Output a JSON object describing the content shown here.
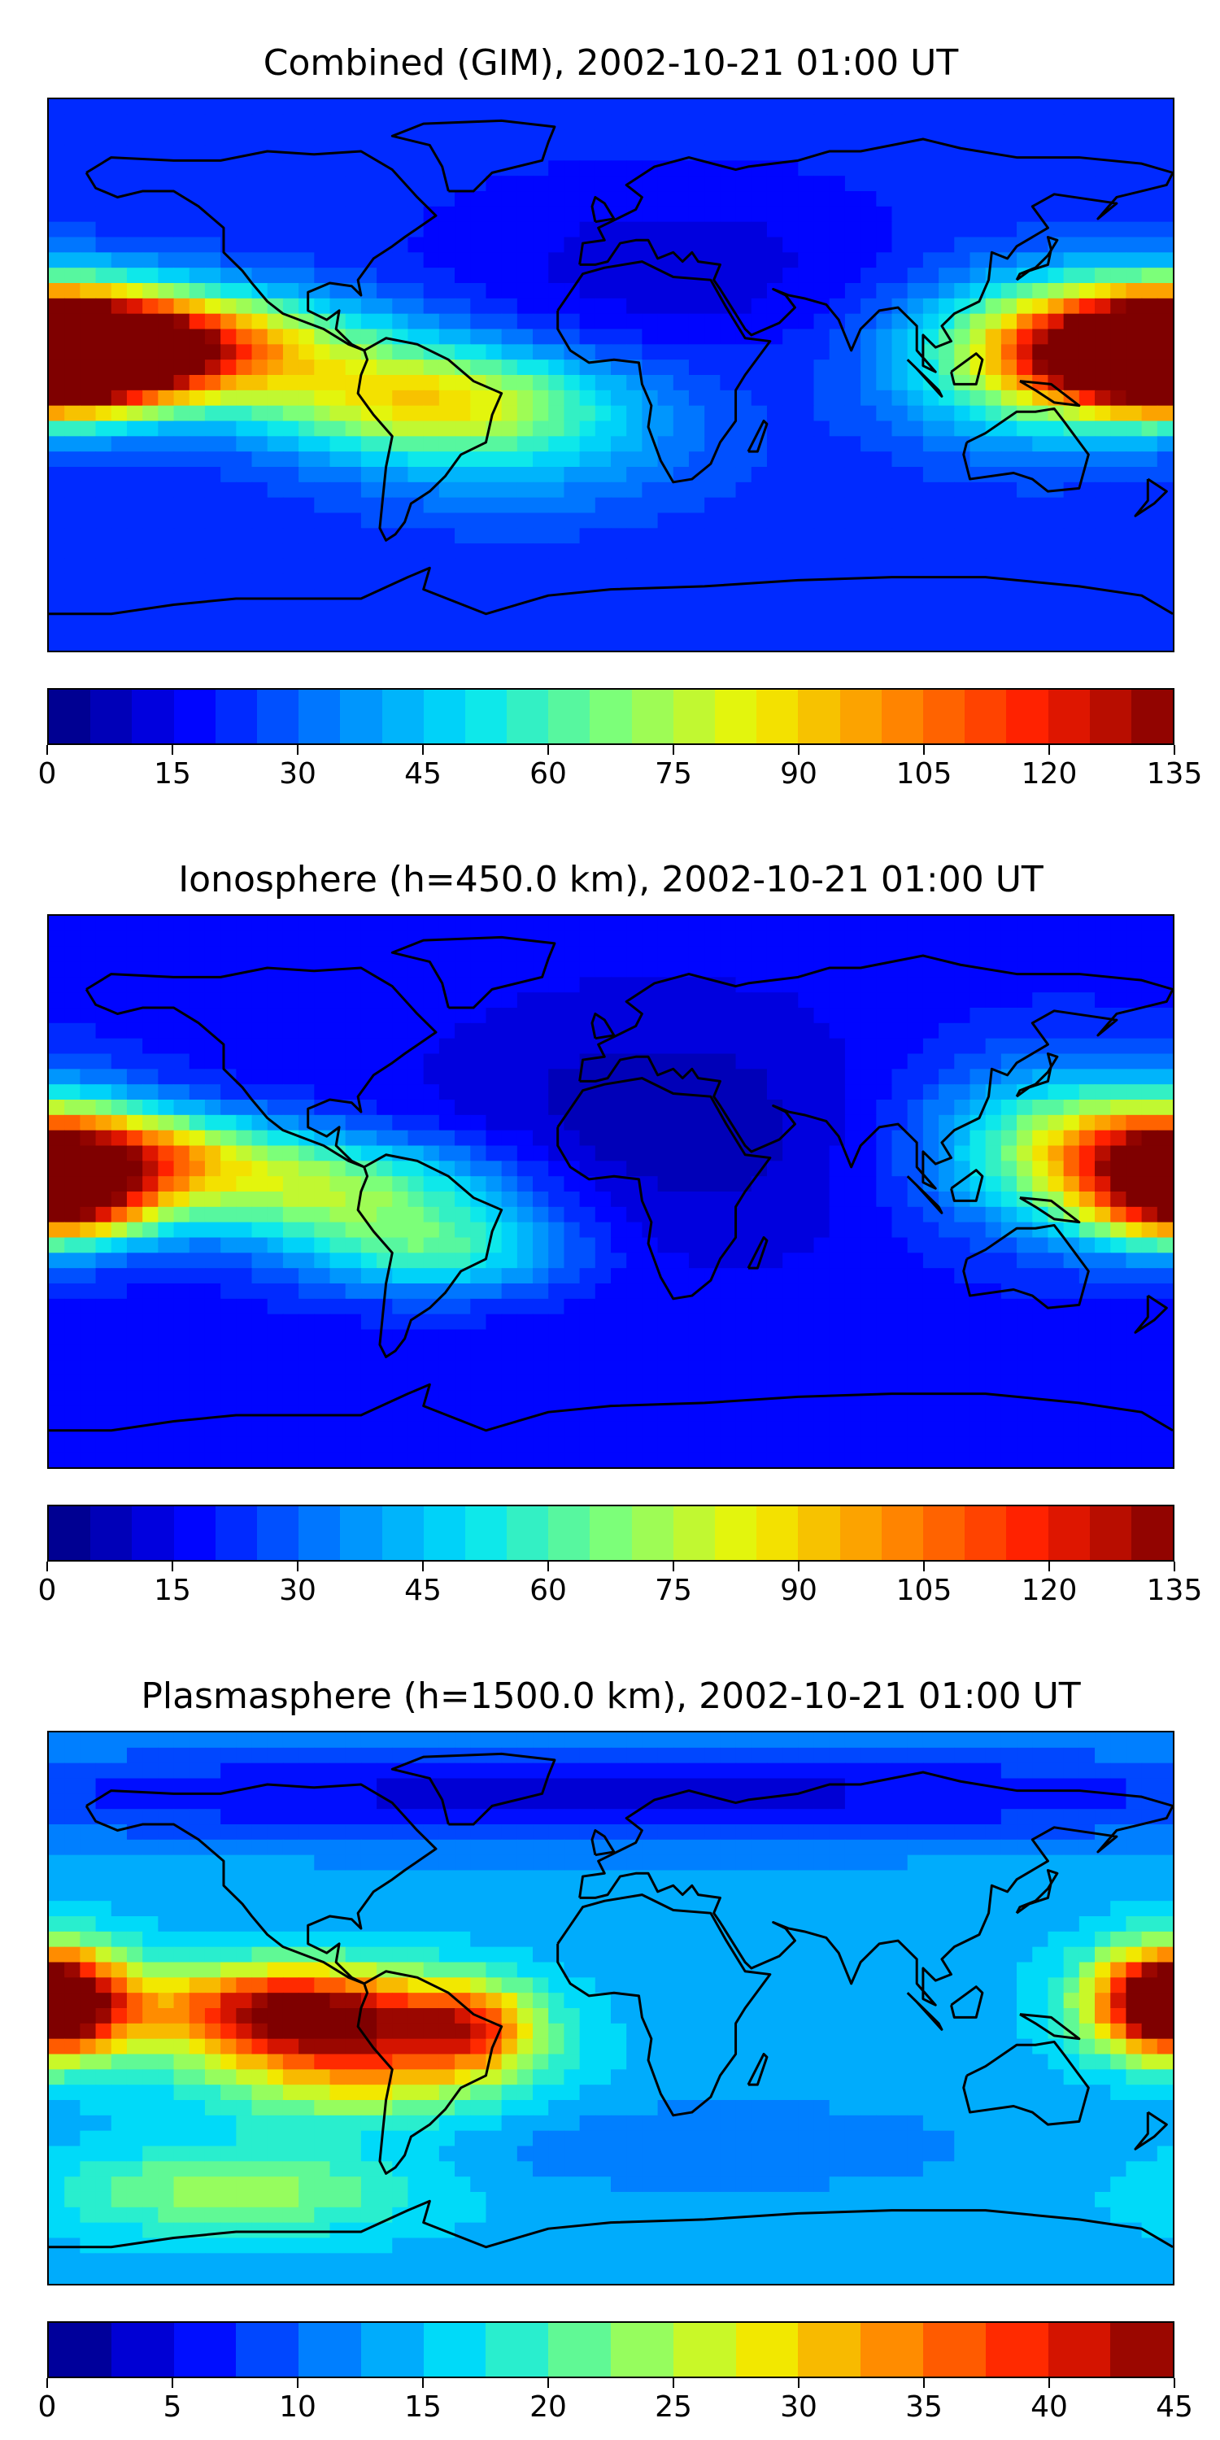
{
  "panels": [
    {
      "title": "Combined (GIM), 2002-10-21 01:00 UT",
      "colorbar": {
        "ticks": [
          "0",
          "15",
          "30",
          "45",
          "60",
          "75",
          "90",
          "105",
          "120",
          "135"
        ],
        "min": 0,
        "max": 135,
        "levels": 27
      },
      "field": {
        "base": 22,
        "blobs": [
          {
            "lon": -150,
            "lat": 10,
            "value": 120,
            "sx": 45,
            "sy": 12
          },
          {
            "lon": -175,
            "lat": 2,
            "value": 100,
            "sx": 25,
            "sy": 10
          },
          {
            "lon": -60,
            "lat": -8,
            "value": 80,
            "sx": 40,
            "sy": 12
          },
          {
            "lon": 178,
            "lat": 10,
            "value": 110,
            "sx": 28,
            "sy": 14
          },
          {
            "lon": 135,
            "lat": 5,
            "value": 70,
            "sx": 30,
            "sy": 18
          },
          {
            "lon": -30,
            "lat": -25,
            "value": 40,
            "sx": 40,
            "sy": 15
          },
          {
            "lon": 20,
            "lat": 35,
            "value": 12,
            "sx": 50,
            "sy": 20
          }
        ]
      }
    },
    {
      "title": "Ionosphere  (h=450.0 km), 2002-10-21 01:00 UT",
      "colorbar": {
        "ticks": [
          "0",
          "15",
          "30",
          "45",
          "60",
          "75",
          "90",
          "105",
          "120",
          "135"
        ],
        "min": 0,
        "max": 135,
        "levels": 27
      },
      "field": {
        "base": 18,
        "blobs": [
          {
            "lon": -160,
            "lat": 12,
            "value": 90,
            "sx": 35,
            "sy": 10
          },
          {
            "lon": -175,
            "lat": -5,
            "value": 85,
            "sx": 20,
            "sy": 8
          },
          {
            "lon": -90,
            "lat": 0,
            "value": 70,
            "sx": 40,
            "sy": 12
          },
          {
            "lon": -55,
            "lat": -20,
            "value": 55,
            "sx": 30,
            "sy": 10
          },
          {
            "lon": 178,
            "lat": 8,
            "value": 80,
            "sx": 25,
            "sy": 16
          },
          {
            "lon": 140,
            "lat": 15,
            "value": 55,
            "sx": 30,
            "sy": 20
          },
          {
            "lon": 15,
            "lat": 20,
            "value": 6,
            "sx": 50,
            "sy": 30
          }
        ]
      }
    },
    {
      "title": "Plasmasphere (h=1500.0 km), 2002-10-21 01:00 UT",
      "colorbar": {
        "ticks": [
          "0",
          "5",
          "10",
          "15",
          "20",
          "25",
          "30",
          "35",
          "40",
          "45"
        ],
        "min": 0,
        "max": 45,
        "levels": 18
      },
      "field": {
        "base": 14,
        "blobs": [
          {
            "lon": -105,
            "lat": 0,
            "value": 40,
            "sx": 30,
            "sy": 10
          },
          {
            "lon": -80,
            "lat": -15,
            "value": 34,
            "sx": 35,
            "sy": 14
          },
          {
            "lon": -45,
            "lat": -5,
            "value": 30,
            "sx": 15,
            "sy": 10
          },
          {
            "lon": 180,
            "lat": 2,
            "value": 38,
            "sx": 20,
            "sy": 12
          },
          {
            "lon": -180,
            "lat": 2,
            "value": 36,
            "sx": 15,
            "sy": 12
          },
          {
            "lon": 0,
            "lat": 70,
            "value": 4,
            "sx": 180,
            "sy": 12
          },
          {
            "lon": 30,
            "lat": -45,
            "value": 10,
            "sx": 60,
            "sy": 10
          },
          {
            "lon": -120,
            "lat": -60,
            "value": 24,
            "sx": 40,
            "sy": 10
          }
        ]
      }
    }
  ],
  "palette": {
    "stops": [
      "#00007f",
      "#0000ff",
      "#007fff",
      "#00e5f8",
      "#7cff79",
      "#f0f400",
      "#ff8c00",
      "#ff1e00",
      "#7f0000"
    ]
  }
}
